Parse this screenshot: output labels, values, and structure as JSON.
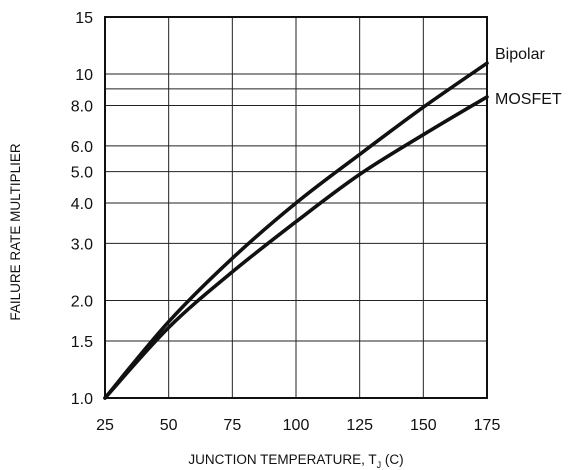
{
  "chart_data": {
    "type": "line",
    "title": "",
    "xlabel": "JUNCTION TEMPERATURE, T",
    "xlabel_subscript": "J",
    "xlabel_suffix": " (C)",
    "ylabel": "FAILURE RATE MULTIPLIER",
    "y_scale": "log",
    "xlim": [
      25,
      175
    ],
    "ylim": [
      1.0,
      15
    ],
    "x_ticks": [
      25,
      50,
      75,
      100,
      125,
      150,
      175
    ],
    "x_tick_labels": [
      "25",
      "50",
      "75",
      "100",
      "125",
      "150",
      "175"
    ],
    "y_ticks": [
      1.0,
      1.5,
      2.0,
      3.0,
      4.0,
      5.0,
      6.0,
      8.0,
      10,
      15
    ],
    "y_tick_labels": [
      "1.0",
      "1.5",
      "2.0",
      "3.0",
      "4.0",
      "5.0",
      "6.0",
      "8.0",
      "10",
      "15"
    ],
    "grid": true,
    "legend": "labels at right end of lines",
    "x": [
      25,
      50,
      75,
      100,
      125,
      150,
      175
    ],
    "series": [
      {
        "name": "Bipolar",
        "values": [
          1.0,
          1.72,
          2.7,
          4.0,
          5.65,
          7.9,
          10.8
        ]
      },
      {
        "name": "MOSFET",
        "values": [
          1.0,
          1.65,
          2.45,
          3.5,
          4.9,
          6.5,
          8.5
        ]
      }
    ]
  }
}
